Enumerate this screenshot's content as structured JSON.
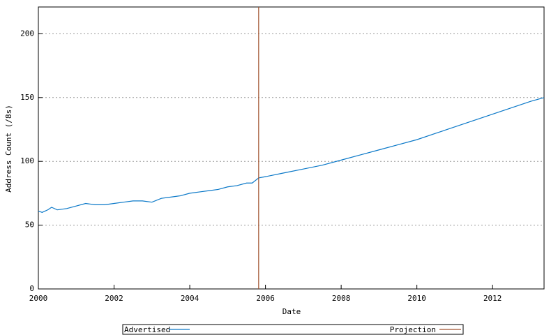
{
  "chart_data": {
    "type": "line",
    "xlabel": "Date",
    "ylabel": "Address Count (/8s)",
    "xlim": [
      2000,
      2013.36
    ],
    "xticks": [
      2000,
      2002,
      2004,
      2006,
      2008,
      2010,
      2012
    ],
    "ylim": [
      0,
      221
    ],
    "yticks": [
      0,
      50,
      100,
      150,
      200
    ],
    "grid": true,
    "series": [
      {
        "name": "Advertised",
        "color": "#0a78c8",
        "x": [
          2000,
          2000.1,
          2000.25,
          2000.35,
          2000.5,
          2000.75,
          2001,
          2001.25,
          2001.5,
          2001.75,
          2002,
          2002.25,
          2002.5,
          2002.75,
          2003,
          2003.25,
          2003.5,
          2003.75,
          2004,
          2004.25,
          2004.5,
          2004.75,
          2005,
          2005.25,
          2005.5,
          2005.65,
          2005.82,
          2006,
          2006.5,
          2007,
          2007.5,
          2008,
          2008.5,
          2009,
          2009.5,
          2010,
          2010.5,
          2011,
          2011.5,
          2012,
          2012.5,
          2013,
          2013.36
        ],
        "values": [
          61,
          60,
          62,
          64,
          62,
          63,
          65,
          67,
          66,
          66,
          67,
          68,
          69,
          69,
          68,
          71,
          72,
          73,
          75,
          76,
          77,
          78,
          80,
          81,
          83,
          83,
          87,
          88,
          91,
          94,
          97,
          101,
          105,
          109,
          113,
          117,
          122,
          127,
          132,
          137,
          142,
          147,
          150
        ]
      },
      {
        "name": "Projection",
        "color": "#a0522d",
        "x": [
          2005.82,
          2005.82
        ],
        "values": [
          0,
          221
        ]
      }
    ],
    "legend": "bottom"
  }
}
